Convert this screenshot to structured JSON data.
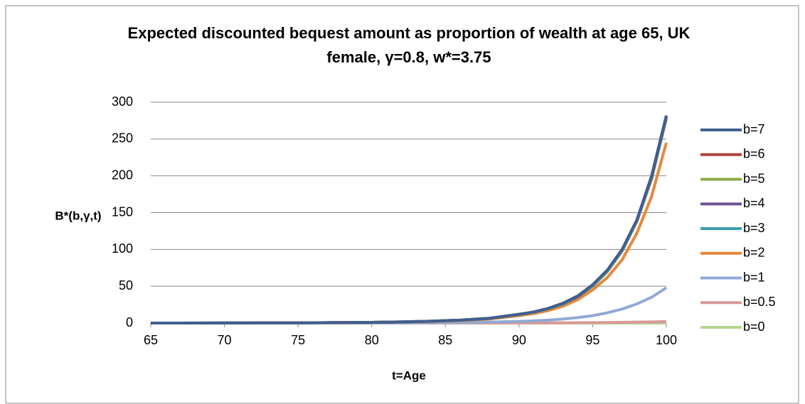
{
  "chart_data": {
    "type": "line",
    "title": "Expected discounted bequest amount as proportion of wealth at age 65, UK female, γ=0.8, w*=3.75",
    "y_label": "B*(b,γ,t)",
    "x_label": "t=Age",
    "x": [
      65,
      70,
      75,
      80,
      82,
      84,
      86,
      88,
      90,
      91,
      92,
      93,
      94,
      95,
      96,
      97,
      98,
      99,
      100
    ],
    "xlim": [
      65,
      100
    ],
    "xticks": [
      65,
      70,
      75,
      80,
      85,
      90,
      95,
      100
    ],
    "ylim": [
      0,
      300
    ],
    "yticks": [
      0,
      50,
      100,
      150,
      200,
      250,
      300
    ],
    "grid": true,
    "legend": "right",
    "series": [
      {
        "name": "b=7",
        "color": "#3f5f8f",
        "values": [
          0,
          0.1,
          0.3,
          1,
          1.6,
          2.5,
          4,
          6.5,
          12,
          15,
          20,
          27,
          37,
          52,
          72,
          100,
          140,
          200,
          282
        ]
      },
      {
        "name": "b=6",
        "color": "#b0413e",
        "values": [
          0,
          0.1,
          0.3,
          1,
          1.6,
          2.5,
          4,
          6.5,
          12,
          15,
          20,
          27,
          37,
          52,
          72,
          100,
          140,
          199,
          281
        ]
      },
      {
        "name": "b=5",
        "color": "#8aac46",
        "values": [
          0,
          0.1,
          0.3,
          1,
          1.6,
          2.5,
          4,
          6.5,
          12,
          15,
          20,
          27,
          37,
          51,
          71,
          99,
          139,
          198,
          280
        ]
      },
      {
        "name": "b=4",
        "color": "#6f5393",
        "values": [
          0,
          0.1,
          0.3,
          1,
          1.6,
          2.5,
          4,
          6.4,
          11.8,
          15,
          20,
          27,
          36,
          51,
          71,
          99,
          139,
          197,
          279
        ]
      },
      {
        "name": "b=3",
        "color": "#3d9bb0",
        "values": [
          0,
          0.1,
          0.3,
          0.9,
          1.5,
          2.4,
          3.9,
          6.3,
          11.5,
          14.7,
          19.5,
          26,
          36,
          50,
          70,
          98,
          138,
          196,
          278
        ]
      },
      {
        "name": "b=2",
        "color": "#e8873a",
        "values": [
          0,
          0.1,
          0.2,
          0.8,
          1.3,
          2.1,
          3.4,
          5.5,
          10,
          13,
          17,
          23,
          32,
          45,
          62,
          86,
          122,
          172,
          245
        ]
      },
      {
        "name": "b=1",
        "color": "#91a9d6",
        "values": [
          0,
          0,
          0.1,
          0.2,
          0.3,
          0.5,
          0.8,
          1.3,
          2.3,
          3,
          4,
          5.5,
          7.5,
          10,
          14,
          19,
          26,
          35,
          48
        ]
      },
      {
        "name": "b=0.5",
        "color": "#d89a98",
        "values": [
          0,
          0,
          0,
          0,
          0,
          0,
          0.1,
          0.1,
          0.2,
          0.2,
          0.3,
          0.4,
          0.5,
          0.6,
          0.8,
          1,
          1.3,
          1.6,
          2
        ]
      },
      {
        "name": "b=0",
        "color": "#b5d48f",
        "values": [
          0,
          0,
          0,
          0,
          0,
          0,
          0,
          0,
          0,
          0,
          0,
          0,
          0,
          0,
          0,
          0,
          0,
          0,
          0
        ]
      }
    ]
  }
}
